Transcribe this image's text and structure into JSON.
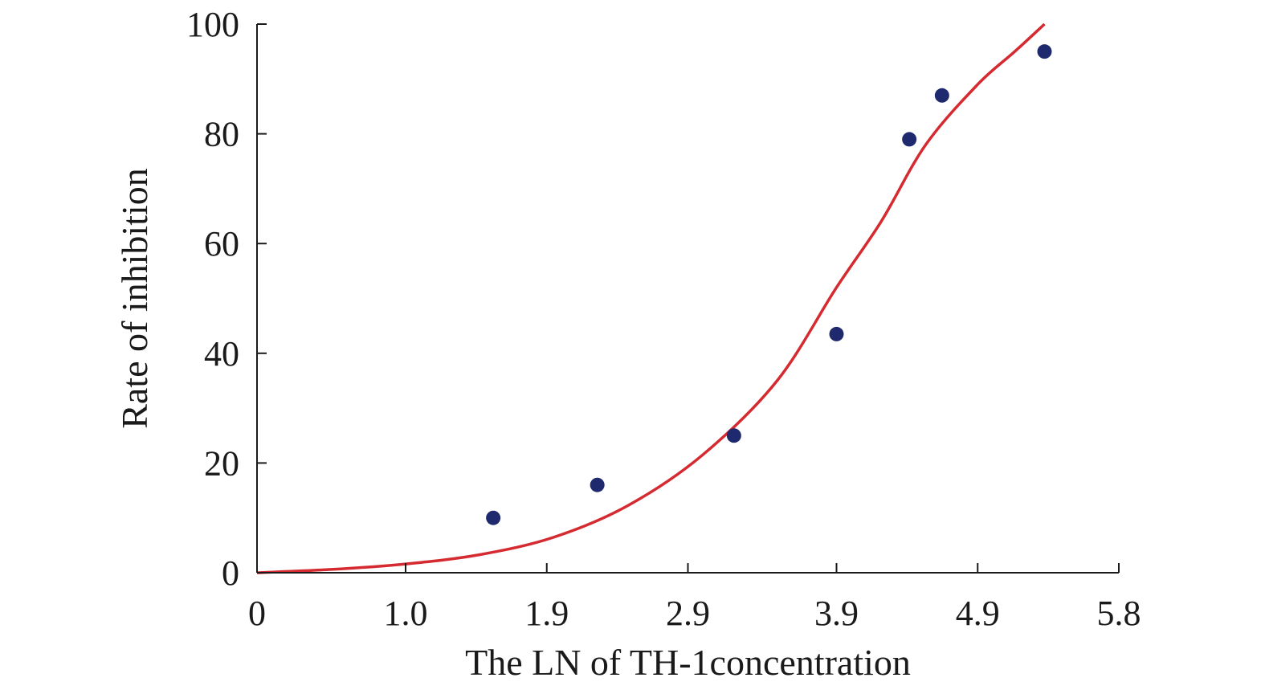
{
  "chart_data": {
    "type": "scatter",
    "xlabel": "The LN of TH-1concentration",
    "ylabel": "Rate of inhibition",
    "xlim": [
      0,
      5.8
    ],
    "ylim": [
      0,
      100
    ],
    "x_ticks": [
      {
        "value": 0,
        "label": "0"
      },
      {
        "value": 1.0,
        "label": "1.0"
      },
      {
        "value": 1.95,
        "label": "1.9"
      },
      {
        "value": 2.9,
        "label": "2.9"
      },
      {
        "value": 3.9,
        "label": "3.9"
      },
      {
        "value": 4.85,
        "label": "4.9"
      },
      {
        "value": 5.8,
        "label": "5.8"
      }
    ],
    "y_ticks": [
      {
        "value": 0,
        "label": "0"
      },
      {
        "value": 20,
        "label": "20"
      },
      {
        "value": 40,
        "label": "40"
      },
      {
        "value": 60,
        "label": "60"
      },
      {
        "value": 80,
        "label": "80"
      },
      {
        "value": 100,
        "label": "100"
      }
    ],
    "points": {
      "color": "#1f2a6e",
      "x": [
        1.59,
        2.29,
        3.21,
        3.9,
        4.39,
        4.61,
        5.3
      ],
      "y": [
        10,
        16,
        25,
        43.5,
        79,
        87,
        95
      ]
    },
    "fit_curve": {
      "color": "#d42a30",
      "x": [
        0,
        0.5,
        1.0,
        1.5,
        2.0,
        2.5,
        3.0,
        3.5,
        3.9,
        4.2,
        4.5,
        4.85,
        5.1,
        5.3
      ],
      "y": [
        0,
        0.6,
        1.6,
        3.3,
        6.5,
        12.3,
        21.5,
        35,
        52,
        64,
        78,
        89,
        95,
        100
      ]
    }
  }
}
